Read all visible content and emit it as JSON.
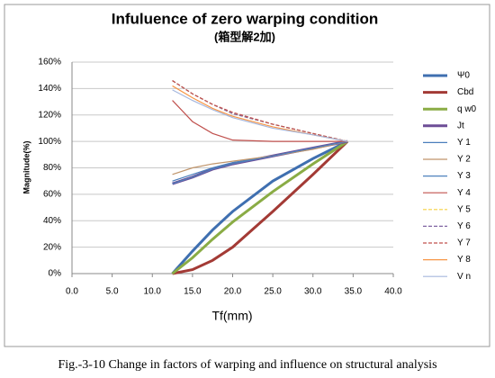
{
  "chart_data": {
    "type": "line",
    "title": "Infuluence of zero warping condition",
    "subtitle": "(箱型解2加)",
    "y_label": "Magnitude(%)",
    "x_label": "Tf(mm)",
    "caption": "Fig.-3-10 Change in factors of warping and influence on structural analysis",
    "x": [
      12.5,
      15,
      17.5,
      20,
      25,
      30,
      34.3
    ],
    "series": [
      {
        "name": "Ψ0",
        "color": "#3f6fb0",
        "values": [
          0,
          17,
          33,
          47,
          70,
          87,
          100
        ]
      },
      {
        "name": "Cbd",
        "color": "#a33a35",
        "values": [
          0,
          3,
          10,
          20,
          47,
          75,
          100
        ]
      },
      {
        "name": "q w0",
        "color": "#8aac45",
        "values": [
          0,
          12,
          26,
          39,
          62,
          83,
          100
        ]
      },
      {
        "name": "Jt",
        "color": "#6d4d96",
        "values": [
          68,
          73,
          79,
          83,
          89,
          95,
          100
        ]
      },
      {
        "name": "Y 1",
        "color": "#4a7ebb",
        "values": [
          70,
          75,
          80,
          84,
          89,
          95,
          100
        ]
      },
      {
        "name": "Y 2",
        "color": "#c0956b",
        "values": [
          75,
          80,
          83,
          85,
          89,
          94,
          100
        ]
      },
      {
        "name": "Y 3",
        "color": "#4f81bd",
        "values": [
          68,
          73,
          79,
          83,
          89,
          95,
          100
        ]
      },
      {
        "name": "Y 4",
        "color": "#c0504d",
        "values": [
          131,
          115,
          106,
          101,
          100,
          100,
          100
        ]
      },
      {
        "name": "Y 5",
        "color": "#f5d040",
        "dash": true,
        "values": [
          146,
          136,
          128,
          121,
          113,
          106,
          100
        ]
      },
      {
        "name": "Y 6",
        "color": "#8064a2",
        "dash": true,
        "values": [
          146,
          136,
          128,
          121,
          113,
          106,
          100
        ]
      },
      {
        "name": "Y 7",
        "color": "#c0504d",
        "dash": true,
        "values": [
          146,
          136,
          128,
          122,
          113,
          106,
          100
        ]
      },
      {
        "name": "Y 8",
        "color": "#f79646",
        "values": [
          142,
          133,
          125,
          119,
          111,
          105,
          100
        ]
      },
      {
        "name": "V n",
        "color": "#a5b7de",
        "values": [
          139,
          131,
          124,
          118,
          110,
          105,
          100
        ]
      }
    ],
    "xlim": [
      0,
      40
    ],
    "xticks": [
      {
        "value": 0,
        "label": "0.0"
      },
      {
        "value": 5,
        "label": "5.0"
      },
      {
        "value": 10,
        "label": "10.0"
      },
      {
        "value": 15,
        "label": "15.0"
      },
      {
        "value": 20,
        "label": "20.0"
      },
      {
        "value": 25,
        "label": "25.0"
      },
      {
        "value": 30,
        "label": "30.0"
      },
      {
        "value": 35,
        "label": "35.0"
      },
      {
        "value": 40,
        "label": "40.0"
      }
    ],
    "ylim": [
      0,
      160
    ],
    "yticks": [
      {
        "value": 0,
        "label": "0%"
      },
      {
        "value": 20,
        "label": "20%"
      },
      {
        "value": 40,
        "label": "40%"
      },
      {
        "value": 60,
        "label": "60%"
      },
      {
        "value": 80,
        "label": "80%"
      },
      {
        "value": 100,
        "label": "100%"
      },
      {
        "value": 120,
        "label": "120%"
      },
      {
        "value": 140,
        "label": "140%"
      },
      {
        "value": 160,
        "label": "160%"
      }
    ],
    "grid": true,
    "legend": "right"
  }
}
